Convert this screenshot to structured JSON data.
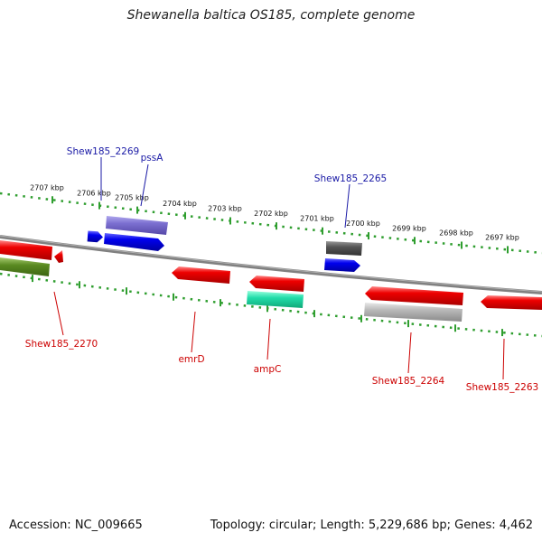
{
  "title": "Shewanella baltica OS185, complete genome",
  "footer": {
    "accession": "Accession: NC_009665",
    "topology": "Topology: circular; Length: 5,229,686 bp; Genes: 4,462"
  },
  "kbp_labels": [
    "2707 kbp",
    "2706 kbp",
    "2705 kbp",
    "2704 kbp",
    "2703 kbp",
    "2702 kbp",
    "2701 kbp",
    "2700 kbp",
    "2699 kbp",
    "2698 kbp",
    "2697 kbp"
  ],
  "gene_labels": {
    "shew2269": "Shew185_2269",
    "pssA": "pssA",
    "shew2265": "Shew185_2265",
    "shew2270": "Shew185_2270",
    "emrD": "emrD",
    "ampC": "ampC",
    "shew2264": "Shew185_2264",
    "shew2263": "Shew185_2263"
  },
  "colors": {
    "forward_label": "#1a1aa6",
    "reverse_label": "#cc0000",
    "gene_red": "#ee0000",
    "gene_blue": "#0000ee",
    "gene_purple": "#7b6fd0",
    "gene_gray": "#555555",
    "gene_green": "#5a8a22",
    "gene_teal": "#22ddaa",
    "gene_lightgray": "#b8b8b8",
    "backbone": "#808080",
    "tick": "#2f9e2f"
  }
}
